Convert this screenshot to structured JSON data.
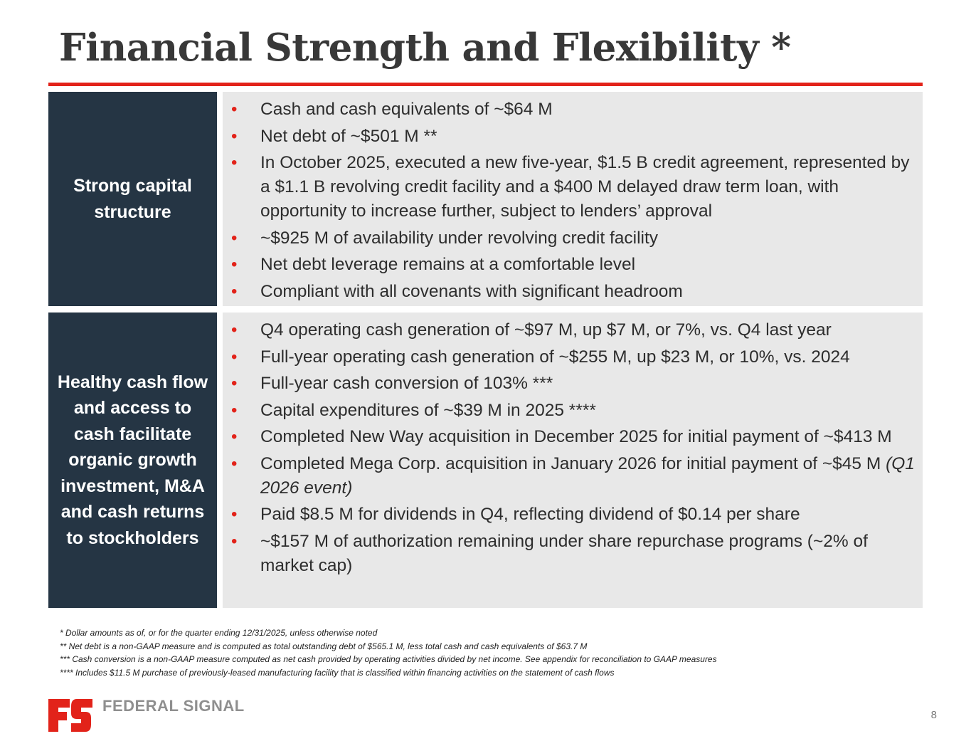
{
  "slide": {
    "title": "Financial Strength and Flexibility *",
    "page_number": "8",
    "accent_color": "#e2231a",
    "label_bg_color": "#253544",
    "content_bg_color": "#e8e8e8"
  },
  "sections": [
    {
      "label": "Strong capital structure",
      "bullets": [
        "Cash and cash equivalents of ~$64 M",
        "Net debt of ~$501 M **",
        "In October 2025, executed a new five-year, $1.5 B credit agreement, represented by a $1.1 B revolving credit facility and a $400 M delayed draw term loan, with opportunity to increase further, subject to lenders’ approval",
        "~$925 M of availability under revolving credit facility",
        "Net debt leverage remains at a comfortable level",
        "Compliant with all covenants with significant headroom"
      ]
    },
    {
      "label": "Healthy cash flow and access to cash facilitate organic growth investment, M&A and cash returns to stockholders",
      "bullets": [
        "Q4 operating cash generation of ~$97 M, up $7 M, or 7%, vs. Q4 last year",
        "Full-year operating cash generation of ~$255 M, up $23 M, or 10%, vs. 2024",
        "Full-year cash conversion of 103% ***",
        "Capital expenditures of ~$39 M in 2025 ****",
        "Completed New Way acquisition in December 2025 for initial payment of ~$413 M",
        "Completed Mega Corp. acquisition in January 2026 for initial payment of ~$45 M",
        "Paid $8.5 M for dividends in Q4, reflecting dividend of $0.14 per share",
        "~$157 M of authorization remaining under share repurchase programs (~2% of market cap)"
      ],
      "bullet6_suffix": "(Q1 2026 event)"
    }
  ],
  "footnotes": [
    "* Dollar amounts as of, or for the quarter ending 12/31/2025, unless otherwise noted",
    "** Net debt is a non-GAAP measure and is computed as total outstanding debt of $565.1 M, less total cash and cash equivalents of $63.7 M",
    "*** Cash conversion is a non-GAAP measure computed as net cash provided by operating activities divided by net income. See appendix for reconciliation to GAAP measures",
    "**** Includes $11.5 M purchase of previously-leased manufacturing facility that is classified within financing activities on the statement of cash flows"
  ],
  "logo": {
    "text": "FEDERAL SIGNAL",
    "icon": "federal-signal-fs-logo-icon"
  }
}
